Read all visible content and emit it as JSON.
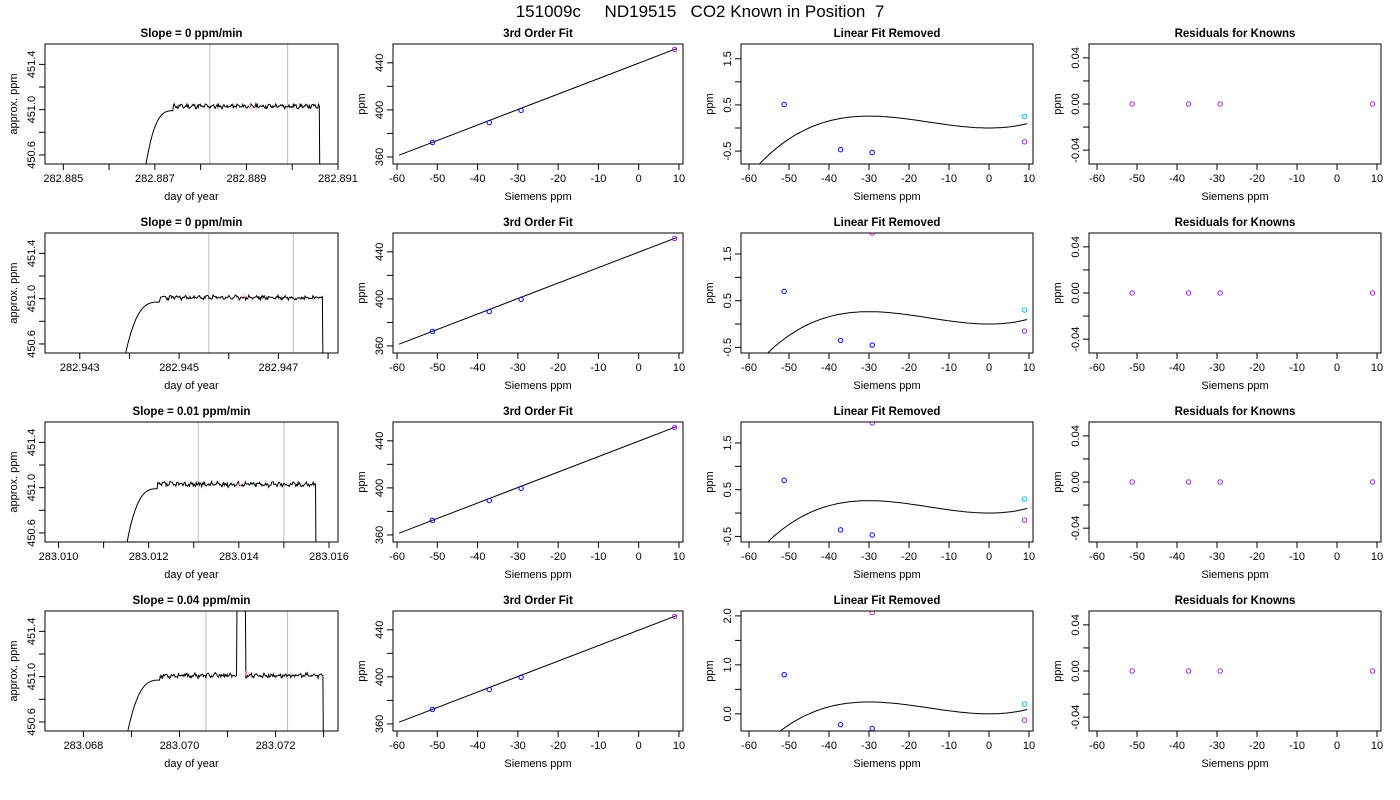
{
  "page": {
    "title": "151009c     ND19515   CO2 Known in Position  7"
  },
  "chart_data": [
    {
      "type": "line",
      "title": "Slope =  0  ppm/min",
      "xlabel": "day of year",
      "ylabel": "approx. ppm",
      "xlim": [
        282.8846,
        282.891
      ],
      "ylim": [
        450.52,
        451.58
      ],
      "xticks": [
        282.885,
        282.886,
        282.887,
        282.888,
        282.889,
        282.89,
        282.891
      ],
      "xtick_labels": [
        "282.885",
        "",
        "282.887",
        "",
        "282.889",
        "",
        "282.891"
      ],
      "yticks": [
        450.6,
        450.8,
        451.0,
        451.2,
        451.4
      ],
      "ytick_labels": [
        "450.6",
        "",
        "451.0",
        "",
        "451.4"
      ],
      "vlines": [
        282.8882,
        282.8899
      ],
      "trace": {
        "t_start": 282.8867,
        "t_rise_end": 282.8874,
        "t_plateau_end": 282.8906,
        "t_drop_end": 282.8907,
        "level": 451.03,
        "spike": null,
        "spike_start": null,
        "spike_end": null,
        "noise": 0.015,
        "seed": 11
      },
      "marker": {
        "x": 282.8891,
        "y": 451.02,
        "color": "#ffb0c8"
      }
    },
    {
      "type": "line",
      "title": "3rd Order Fit",
      "xlabel": "Siemens ppm",
      "ylabel": "ppm",
      "xlim": [
        -61,
        11
      ],
      "ylim": [
        354,
        456
      ],
      "xticks": [
        -60,
        -50,
        -40,
        -30,
        -20,
        -10,
        0,
        10
      ],
      "xtick_labels": [
        "-60",
        "-50",
        "-40",
        "-30",
        "-20",
        "-10",
        "0",
        "10"
      ],
      "yticks": [
        360,
        380,
        400,
        420,
        440
      ],
      "ytick_labels": [
        "360",
        "",
        "400",
        "",
        "440"
      ],
      "fit_line": [
        [
          -59.5,
          361.5
        ],
        [
          9.5,
          452.2
        ]
      ],
      "points": [
        {
          "x": -51.2,
          "y": 372.3,
          "color": "#0000ff"
        },
        {
          "x": -37.1,
          "y": 389.2,
          "color": "#0000ff"
        },
        {
          "x": -29.2,
          "y": 399.6,
          "color": "#0000ff"
        },
        {
          "x": 8.9,
          "y": 451.4,
          "color": "#a020f0"
        }
      ]
    },
    {
      "type": "line",
      "title": "Linear Fit Removed",
      "xlabel": "Siemens ppm",
      "ylabel": "ppm",
      "xlim": [
        -62,
        11
      ],
      "ylim": [
        -0.78,
        1.82
      ],
      "xticks": [
        -60,
        -50,
        -40,
        -30,
        -20,
        -10,
        0,
        10
      ],
      "xtick_labels": [
        "-60",
        "-50",
        "-40",
        "-30",
        "-20",
        "-10",
        "0",
        "10"
      ],
      "yticks": [
        -0.5,
        0,
        0.5,
        1.0,
        1.5
      ],
      "ytick_labels": [
        "-0.5",
        "",
        "0.5",
        "",
        "1.5"
      ],
      "curve": {
        "a": 1.03,
        "b": -30.2,
        "c": 0,
        "k": 0.0
      },
      "curve_range": [
        -60,
        9.5
      ],
      "points": [
        {
          "x": -51.2,
          "y": 0.51,
          "color": "#0000ff"
        },
        {
          "x": -37.1,
          "y": -0.47,
          "color": "#0000ff"
        },
        {
          "x": -29.2,
          "y": -0.53,
          "color": "#0000ff"
        },
        {
          "x": 8.9,
          "y": 0.25,
          "color": "#00bfff"
        },
        {
          "x": 8.9,
          "y": -0.3,
          "color": "#a020f0"
        }
      ]
    },
    {
      "type": "scatter",
      "title": "Residuals for Knowns",
      "xlabel": "Siemens ppm",
      "ylabel": "ppm",
      "xlim": [
        -62,
        11
      ],
      "ylim": [
        -0.052,
        0.052
      ],
      "xticks": [
        -60,
        -50,
        -40,
        -30,
        -20,
        -10,
        0,
        10
      ],
      "xtick_labels": [
        "-60",
        "-50",
        "-40",
        "-30",
        "-20",
        "-10",
        "0",
        "10"
      ],
      "yticks": [
        -0.04,
        -0.02,
        0.0,
        0.02,
        0.04
      ],
      "ytick_labels": [
        "-0.04",
        "",
        "0.00",
        "",
        "0.04"
      ],
      "points": [
        {
          "x": -51.2,
          "y": 0.0,
          "color": "#a020f0"
        },
        {
          "x": -37.1,
          "y": 0.0,
          "color": "#a020f0"
        },
        {
          "x": -29.2,
          "y": 0.0,
          "color": "#a020f0"
        },
        {
          "x": 8.9,
          "y": 0.0,
          "color": "#a020f0"
        }
      ]
    },
    {
      "type": "line",
      "title": "Slope =  0  ppm/min",
      "xlabel": "day of year",
      "ylabel": "approx. ppm",
      "xlim": [
        282.9423,
        282.9482
      ],
      "ylim": [
        450.52,
        451.58
      ],
      "xticks": [
        282.943,
        282.944,
        282.945,
        282.946,
        282.947,
        282.948
      ],
      "xtick_labels": [
        "282.943",
        "",
        "282.945",
        "",
        "282.947",
        ""
      ],
      "yticks": [
        450.6,
        450.8,
        451.0,
        451.2,
        451.4
      ],
      "ytick_labels": [
        "450.6",
        "",
        "451.0",
        "",
        "451.4"
      ],
      "vlines": [
        282.9456,
        282.9473
      ],
      "trace": {
        "t_start": 282.9438,
        "t_rise_end": 282.9446,
        "t_plateau_end": 282.9479,
        "t_drop_end": 282.94795,
        "level": 451.01,
        "spike": null,
        "spike_start": null,
        "spike_end": null,
        "noise": 0.015,
        "seed": 23
      },
      "marker": {
        "x": 282.9463,
        "y": 451.03,
        "color": "#ffb0c8"
      }
    },
    {
      "type": "line",
      "title": "3rd Order Fit",
      "xlabel": "Siemens ppm",
      "ylabel": "ppm",
      "xlim": [
        -61,
        11
      ],
      "ylim": [
        354,
        456
      ],
      "xticks": [
        -60,
        -50,
        -40,
        -30,
        -20,
        -10,
        0,
        10
      ],
      "xtick_labels": [
        "-60",
        "-50",
        "-40",
        "-30",
        "-20",
        "-10",
        "0",
        "10"
      ],
      "yticks": [
        360,
        380,
        400,
        420,
        440
      ],
      "ytick_labels": [
        "360",
        "",
        "400",
        "",
        "440"
      ],
      "fit_line": [
        [
          -59.5,
          361.5
        ],
        [
          9.5,
          452.2
        ]
      ],
      "points": [
        {
          "x": -51.2,
          "y": 372.3,
          "color": "#0000ff"
        },
        {
          "x": -37.1,
          "y": 389.2,
          "color": "#0000ff"
        },
        {
          "x": -29.2,
          "y": 399.6,
          "color": "#0000ff"
        },
        {
          "x": 8.9,
          "y": 451.4,
          "color": "#a020f0"
        }
      ]
    },
    {
      "type": "line",
      "title": "Linear Fit Removed",
      "xlabel": "Siemens ppm",
      "ylabel": "ppm",
      "xlim": [
        -62,
        11
      ],
      "ylim": [
        -0.62,
        1.95
      ],
      "xticks": [
        -60,
        -50,
        -40,
        -30,
        -20,
        -10,
        0,
        10
      ],
      "xtick_labels": [
        "-60",
        "-50",
        "-40",
        "-30",
        "-20",
        "-10",
        "0",
        "10"
      ],
      "yticks": [
        -0.5,
        0,
        0.5,
        1.0,
        1.5
      ],
      "ytick_labels": [
        "-0.5",
        "",
        "0.5",
        "",
        "1.5"
      ],
      "curve": {
        "a": 1.06,
        "b": -30.2,
        "c": 0,
        "k": 0.0
      },
      "curve_range": [
        -60,
        9.5
      ],
      "points": [
        {
          "x": -51.2,
          "y": 0.7,
          "color": "#0000ff"
        },
        {
          "x": -37.1,
          "y": -0.35,
          "color": "#0000ff"
        },
        {
          "x": -29.2,
          "y": -0.45,
          "color": "#0000ff"
        },
        {
          "x": 8.9,
          "y": 0.3,
          "color": "#00bfff"
        },
        {
          "x": 8.9,
          "y": -0.15,
          "color": "#a020f0"
        },
        {
          "x": -29.2,
          "y": 1.95,
          "color": "#a020f0"
        }
      ]
    },
    {
      "type": "scatter",
      "title": "Residuals for Knowns",
      "xlabel": "Siemens ppm",
      "ylabel": "ppm",
      "xlim": [
        -62,
        11
      ],
      "ylim": [
        -0.052,
        0.052
      ],
      "xticks": [
        -60,
        -50,
        -40,
        -30,
        -20,
        -10,
        0,
        10
      ],
      "xtick_labels": [
        "-60",
        "-50",
        "-40",
        "-30",
        "-20",
        "-10",
        "0",
        "10"
      ],
      "yticks": [
        -0.04,
        -0.02,
        0.0,
        0.02,
        0.04
      ],
      "ytick_labels": [
        "-0.04",
        "",
        "0.00",
        "",
        "0.04"
      ],
      "points": [
        {
          "x": -51.2,
          "y": 0.0,
          "color": "#a020f0"
        },
        {
          "x": -37.1,
          "y": 0.0,
          "color": "#a020f0"
        },
        {
          "x": -29.2,
          "y": 0.0,
          "color": "#a020f0"
        },
        {
          "x": 8.9,
          "y": 0.0,
          "color": "#a020f0"
        }
      ]
    },
    {
      "type": "line",
      "title": "Slope =  0.01  ppm/min",
      "xlabel": "day of year",
      "ylabel": "approx. ppm",
      "xlim": [
        283.0097,
        283.0162
      ],
      "ylim": [
        450.52,
        451.58
      ],
      "xticks": [
        283.01,
        283.011,
        283.012,
        283.013,
        283.014,
        283.015,
        283.016
      ],
      "xtick_labels": [
        "283.010",
        "",
        "283.012",
        "",
        "283.014",
        "",
        "283.016"
      ],
      "yticks": [
        450.6,
        450.8,
        451.0,
        451.2,
        451.4
      ],
      "ytick_labels": [
        "450.6",
        "",
        "451.0",
        "",
        "451.4"
      ],
      "vlines": [
        283.0131,
        283.015
      ],
      "trace": {
        "t_start": 283.0114,
        "t_rise_end": 283.0122,
        "t_plateau_end": 283.0157,
        "t_drop_end": 283.01575,
        "level": 451.03,
        "spike": null,
        "spike_start": null,
        "spike_end": null,
        "noise": 0.018,
        "seed": 37
      },
      "marker": {
        "x": 283.014,
        "y": 451.02,
        "color": "#ffb0c8"
      }
    },
    {
      "type": "line",
      "title": "3rd Order Fit",
      "xlabel": "Siemens ppm",
      "ylabel": "ppm",
      "xlim": [
        -61,
        11
      ],
      "ylim": [
        354,
        456
      ],
      "xticks": [
        -60,
        -50,
        -40,
        -30,
        -20,
        -10,
        0,
        10
      ],
      "xtick_labels": [
        "-60",
        "-50",
        "-40",
        "-30",
        "-20",
        "-10",
        "0",
        "10"
      ],
      "yticks": [
        360,
        380,
        400,
        420,
        440
      ],
      "ytick_labels": [
        "360",
        "",
        "400",
        "",
        "440"
      ],
      "fit_line": [
        [
          -59.5,
          361.5
        ],
        [
          9.5,
          452.2
        ]
      ],
      "points": [
        {
          "x": -51.2,
          "y": 372.3,
          "color": "#0000ff"
        },
        {
          "x": -37.1,
          "y": 389.2,
          "color": "#0000ff"
        },
        {
          "x": -29.2,
          "y": 399.6,
          "color": "#0000ff"
        },
        {
          "x": 8.9,
          "y": 451.4,
          "color": "#a020f0"
        }
      ]
    },
    {
      "type": "line",
      "title": "Linear Fit Removed",
      "xlabel": "Siemens ppm",
      "ylabel": "ppm",
      "xlim": [
        -62,
        11
      ],
      "ylim": [
        -0.62,
        1.95
      ],
      "xticks": [
        -60,
        -50,
        -40,
        -30,
        -20,
        -10,
        0,
        10
      ],
      "xtick_labels": [
        "-60",
        "-50",
        "-40",
        "-30",
        "-20",
        "-10",
        "0",
        "10"
      ],
      "yticks": [
        -0.5,
        0,
        0.5,
        1.0,
        1.5
      ],
      "ytick_labels": [
        "-0.5",
        "",
        "0.5",
        "",
        "1.5"
      ],
      "curve": {
        "a": 1.06,
        "b": -30.2,
        "c": 0,
        "k": 0.0
      },
      "curve_range": [
        -60,
        9.5
      ],
      "points": [
        {
          "x": -51.2,
          "y": 0.7,
          "color": "#0000ff"
        },
        {
          "x": -37.1,
          "y": -0.36,
          "color": "#0000ff"
        },
        {
          "x": -29.2,
          "y": -0.47,
          "color": "#0000ff"
        },
        {
          "x": 8.9,
          "y": 0.3,
          "color": "#00bfff"
        },
        {
          "x": 8.9,
          "y": -0.15,
          "color": "#a020f0"
        },
        {
          "x": -29.2,
          "y": 1.93,
          "color": "#a020f0"
        }
      ]
    },
    {
      "type": "scatter",
      "title": "Residuals for Knowns",
      "xlabel": "Siemens ppm",
      "ylabel": "ppm",
      "xlim": [
        -62,
        11
      ],
      "ylim": [
        -0.052,
        0.052
      ],
      "xticks": [
        -60,
        -50,
        -40,
        -30,
        -20,
        -10,
        0,
        10
      ],
      "xtick_labels": [
        "-60",
        "-50",
        "-40",
        "-30",
        "-20",
        "-10",
        "0",
        "10"
      ],
      "yticks": [
        -0.04,
        -0.02,
        0.0,
        0.02,
        0.04
      ],
      "ytick_labels": [
        "-0.04",
        "",
        "0.00",
        "",
        "0.04"
      ],
      "points": [
        {
          "x": -51.2,
          "y": 0.0,
          "color": "#a020f0"
        },
        {
          "x": -37.1,
          "y": 0.0,
          "color": "#a020f0"
        },
        {
          "x": -29.2,
          "y": 0.0,
          "color": "#a020f0"
        },
        {
          "x": 8.9,
          "y": 0.0,
          "color": "#a020f0"
        }
      ]
    },
    {
      "type": "line",
      "title": "Slope =  0.04  ppm/min",
      "xlabel": "day of year",
      "ylabel": "approx. ppm",
      "xlim": [
        283.0672,
        283.0733
      ],
      "ylim": [
        450.52,
        451.58
      ],
      "xticks": [
        283.068,
        283.069,
        283.07,
        283.071,
        283.072,
        283.073
      ],
      "xtick_labels": [
        "283.068",
        "",
        "283.070",
        "",
        "283.072",
        ""
      ],
      "yticks": [
        450.6,
        450.8,
        451.0,
        451.2,
        451.4
      ],
      "ytick_labels": [
        "450.6",
        "",
        "451.0",
        "",
        "451.4"
      ],
      "vlines": [
        283.07055,
        283.07225
      ],
      "trace": {
        "t_start": 283.0688,
        "t_rise_end": 283.0696,
        "t_plateau_end": 283.073,
        "t_drop_end": 283.07305,
        "level": 451.01,
        "spike": 451.58,
        "spike_start": 283.0712,
        "spike_end": 283.07138,
        "noise": 0.016,
        "seed": 53
      },
      "marker": {
        "x": 283.0714,
        "y": 451.03,
        "color": "#ffb0c8"
      }
    },
    {
      "type": "line",
      "title": "3rd Order Fit",
      "xlabel": "Siemens ppm",
      "ylabel": "ppm",
      "xlim": [
        -61,
        11
      ],
      "ylim": [
        354,
        456
      ],
      "xticks": [
        -60,
        -50,
        -40,
        -30,
        -20,
        -10,
        0,
        10
      ],
      "xtick_labels": [
        "-60",
        "-50",
        "-40",
        "-30",
        "-20",
        "-10",
        "0",
        "10"
      ],
      "yticks": [
        360,
        380,
        400,
        420,
        440
      ],
      "ytick_labels": [
        "360",
        "",
        "400",
        "",
        "440"
      ],
      "fit_line": [
        [
          -59.5,
          361.5
        ],
        [
          9.5,
          452.2
        ]
      ],
      "points": [
        {
          "x": -51.2,
          "y": 372.3,
          "color": "#0000ff"
        },
        {
          "x": -37.1,
          "y": 389.2,
          "color": "#0000ff"
        },
        {
          "x": -29.2,
          "y": 399.6,
          "color": "#0000ff"
        },
        {
          "x": 8.9,
          "y": 451.4,
          "color": "#a020f0"
        }
      ]
    },
    {
      "type": "line",
      "title": "Linear Fit Removed",
      "xlabel": "Siemens ppm",
      "ylabel": "ppm",
      "xlim": [
        -62,
        11
      ],
      "ylim": [
        -0.35,
        2.1
      ],
      "xticks": [
        -60,
        -50,
        -40,
        -30,
        -20,
        -10,
        0,
        10
      ],
      "xtick_labels": [
        "-60",
        "-50",
        "-40",
        "-30",
        "-20",
        "-10",
        "0",
        "10"
      ],
      "yticks": [
        0.0,
        0.5,
        1.0,
        1.5,
        2.0
      ],
      "ytick_labels": [
        "0.0",
        "",
        "1.0",
        "",
        "2.0"
      ],
      "curve": {
        "a": 0.97,
        "b": -30.2,
        "c": 0,
        "k": 0.0
      },
      "curve_range": [
        -60,
        9.5
      ],
      "points": [
        {
          "x": -51.2,
          "y": 0.8,
          "color": "#0000ff"
        },
        {
          "x": -37.1,
          "y": -0.22,
          "color": "#0000ff"
        },
        {
          "x": -29.2,
          "y": -0.3,
          "color": "#0000ff"
        },
        {
          "x": 8.9,
          "y": 0.2,
          "color": "#00bfff"
        },
        {
          "x": 8.9,
          "y": -0.13,
          "color": "#a020f0"
        },
        {
          "x": -29.2,
          "y": 2.07,
          "color": "#a020f0"
        }
      ]
    },
    {
      "type": "scatter",
      "title": "Residuals for Knowns",
      "xlabel": "Siemens ppm",
      "ylabel": "ppm",
      "xlim": [
        -62,
        11
      ],
      "ylim": [
        -0.052,
        0.052
      ],
      "xticks": [
        -60,
        -50,
        -40,
        -30,
        -20,
        -10,
        0,
        10
      ],
      "xtick_labels": [
        "-60",
        "-50",
        "-40",
        "-30",
        "-20",
        "-10",
        "0",
        "10"
      ],
      "yticks": [
        -0.04,
        -0.02,
        0.0,
        0.02,
        0.04
      ],
      "ytick_labels": [
        "-0.04",
        "",
        "0.00",
        "",
        "0.04"
      ],
      "points": [
        {
          "x": -51.2,
          "y": 0.0,
          "color": "#a020f0"
        },
        {
          "x": -37.1,
          "y": 0.0,
          "color": "#a020f0"
        },
        {
          "x": -29.2,
          "y": 0.0,
          "color": "#a020f0"
        },
        {
          "x": 8.9,
          "y": 0.0,
          "color": "#a020f0"
        }
      ]
    }
  ]
}
